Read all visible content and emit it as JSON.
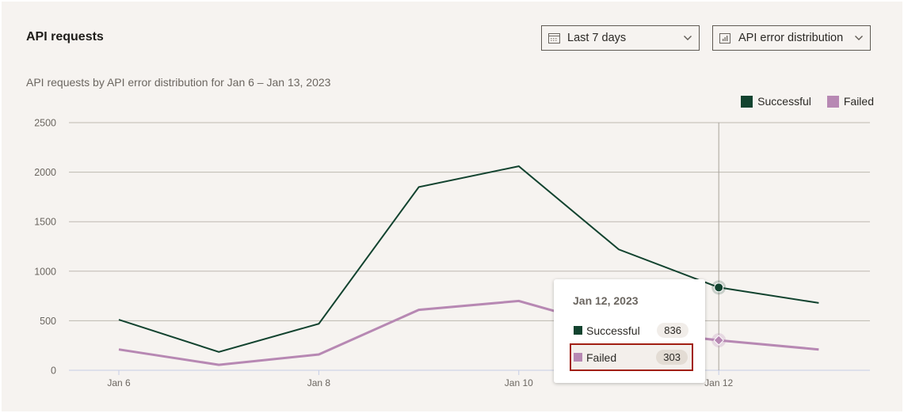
{
  "header": {
    "title": "API requests",
    "subtitle": "API requests by API error distribution for Jan 6 – Jan 13, 2023"
  },
  "controls": {
    "date_range": {
      "label": "Last 7 days",
      "icon": "calendar-icon"
    },
    "metric": {
      "label": "API error distribution",
      "icon": "bar-chart-icon"
    }
  },
  "legend": [
    {
      "label": "Successful",
      "color": "#12432f"
    },
    {
      "label": "Failed",
      "color": "#b788b3"
    }
  ],
  "tooltip": {
    "date": "Jan 12, 2023",
    "rows": [
      {
        "label": "Successful",
        "value": "836",
        "color": "#12432f"
      },
      {
        "label": "Failed",
        "value": "303",
        "color": "#b788b3",
        "highlighted": true
      }
    ]
  },
  "chart_data": {
    "type": "line",
    "title": "API requests",
    "subtitle": "API requests by API error distribution for Jan 6 – Jan 13, 2023",
    "xlabel": "",
    "ylabel": "",
    "x": [
      "Jan 6",
      "Jan 7",
      "Jan 8",
      "Jan 9",
      "Jan 10",
      "Jan 11",
      "Jan 12",
      "Jan 13"
    ],
    "x_tick_labels": [
      "Jan 6",
      "Jan 8",
      "Jan 10",
      "Jan 12"
    ],
    "y_ticks": [
      0,
      500,
      1000,
      1500,
      2000,
      2500
    ],
    "ylim": [
      0,
      2500
    ],
    "grid": true,
    "legend_position": "top-right",
    "series": [
      {
        "name": "Successful",
        "color": "#12432f",
        "values": [
          510,
          185,
          470,
          1850,
          2060,
          1220,
          836,
          680
        ]
      },
      {
        "name": "Failed",
        "color": "#b788b3",
        "values": [
          210,
          55,
          160,
          610,
          700,
          415,
          303,
          210
        ]
      }
    ],
    "hover": {
      "x": "Jan 12",
      "date": "Jan 12, 2023",
      "Successful": 836,
      "Failed": 303
    }
  }
}
